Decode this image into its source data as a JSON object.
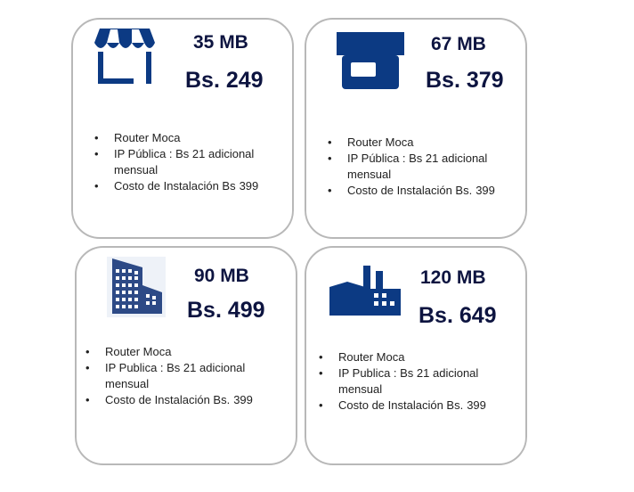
{
  "plans": [
    {
      "icon": "storefront-awning-icon",
      "speed": "35 MB",
      "price": "Bs. 249",
      "features": [
        "Router Moca",
        "IP Pública : Bs 21 adicional mensual",
        "Costo de Instalación Bs"
      ],
      "install_amount": "399"
    },
    {
      "icon": "shop-icon",
      "speed": "67 MB",
      "price": "Bs. 379",
      "features": [
        "Router Moca",
        "IP Pública : Bs 21 adicional mensual",
        "Costo de Instalación Bs."
      ],
      "install_amount": "399"
    },
    {
      "icon": "office-building-icon",
      "speed": "90 MB",
      "price": "Bs. 499",
      "features": [
        "Router Moca",
        "IP Publica : Bs 21 adicional mensual",
        "Costo de Instalación Bs."
      ],
      "install_amount": "399"
    },
    {
      "icon": "factory-icon",
      "speed": "120 MB",
      "price": "Bs. 649",
      "features": [
        "Router Moca",
        "IP Publica : Bs 21 adicional mensual",
        "Costo de Instalación Bs."
      ],
      "install_amount": "399"
    }
  ],
  "colors": {
    "icon_blue": "#0c3a83",
    "building_blue": "#2d4a86",
    "price_navy": "#0d1440",
    "card_border": "#b8b8b8"
  }
}
